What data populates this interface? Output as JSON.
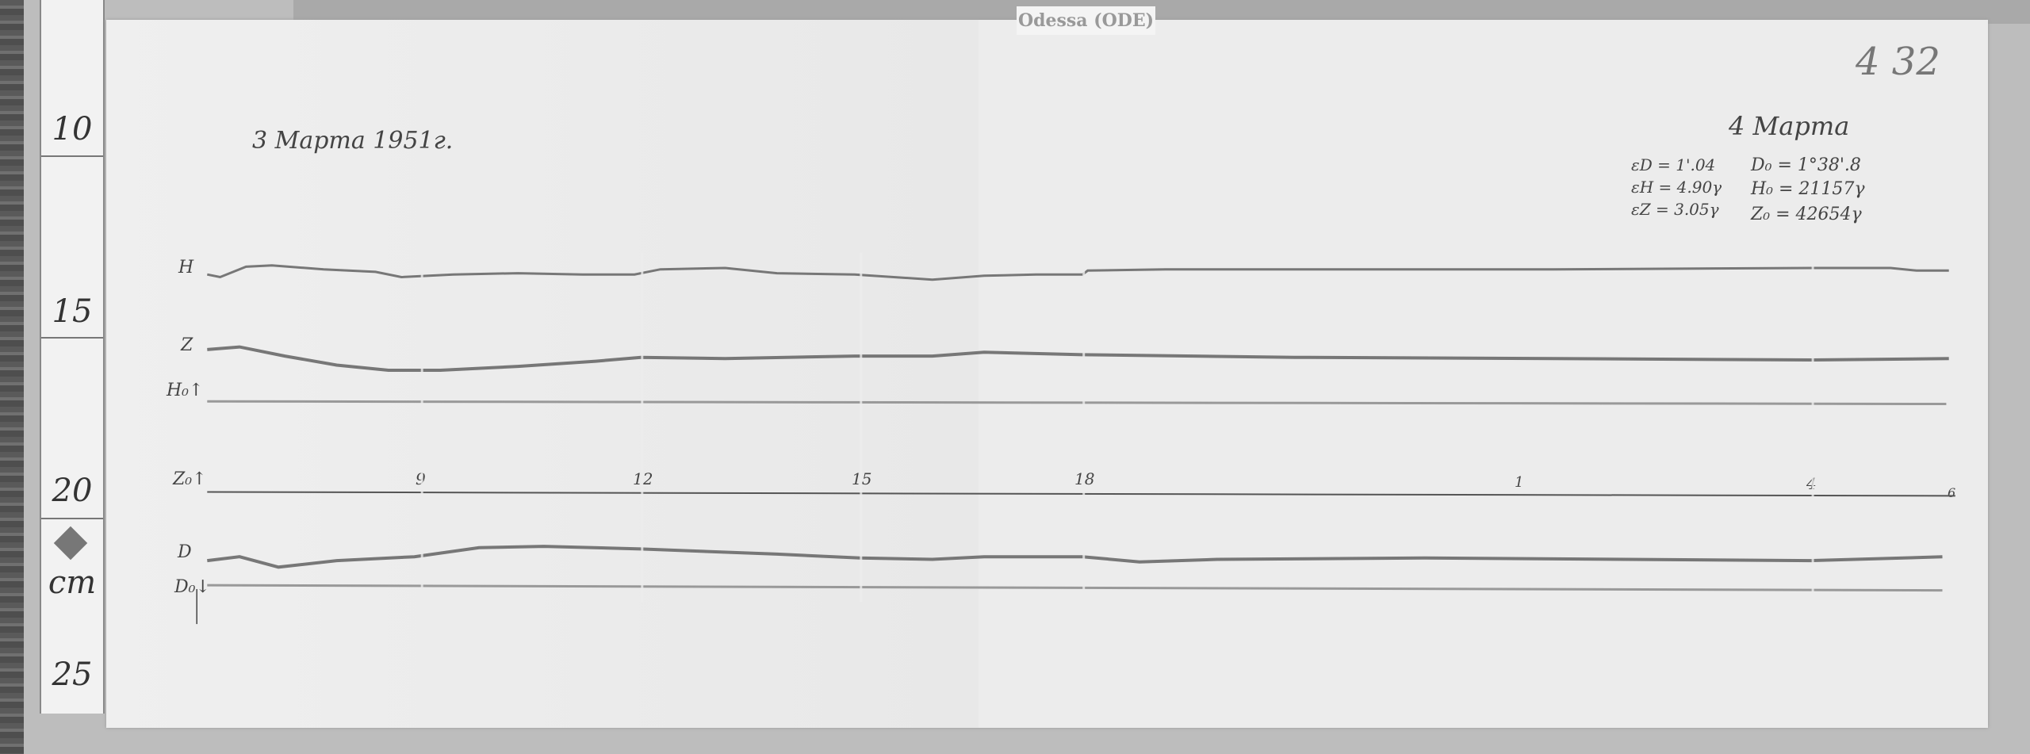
{
  "station_label": "Odessa (ODE)",
  "ruler": {
    "marks": [
      "10",
      "15",
      "20",
      "25"
    ],
    "unit": "cm"
  },
  "sheet_number": "4 32",
  "date_start": "3 Марта 1951г.",
  "date_end": "4 Марта",
  "scale_values": {
    "eD": "εD = 1'.04",
    "eH": "εH = 4.90γ",
    "eZ": "εZ = 3.05γ",
    "D0": "D₀ = 1°38'.8",
    "H0": "H₀ = 21157γ",
    "Z0": "Z₀ = 42654γ"
  },
  "trace_labels": {
    "H": "H",
    "Z": "Z",
    "H0": "H₀↑",
    "Z0": "Z₀↑",
    "D": "D",
    "D0": "D₀↓"
  },
  "hour_marks": [
    "9",
    "12",
    "15",
    "18",
    "1",
    "4",
    "6"
  ]
}
